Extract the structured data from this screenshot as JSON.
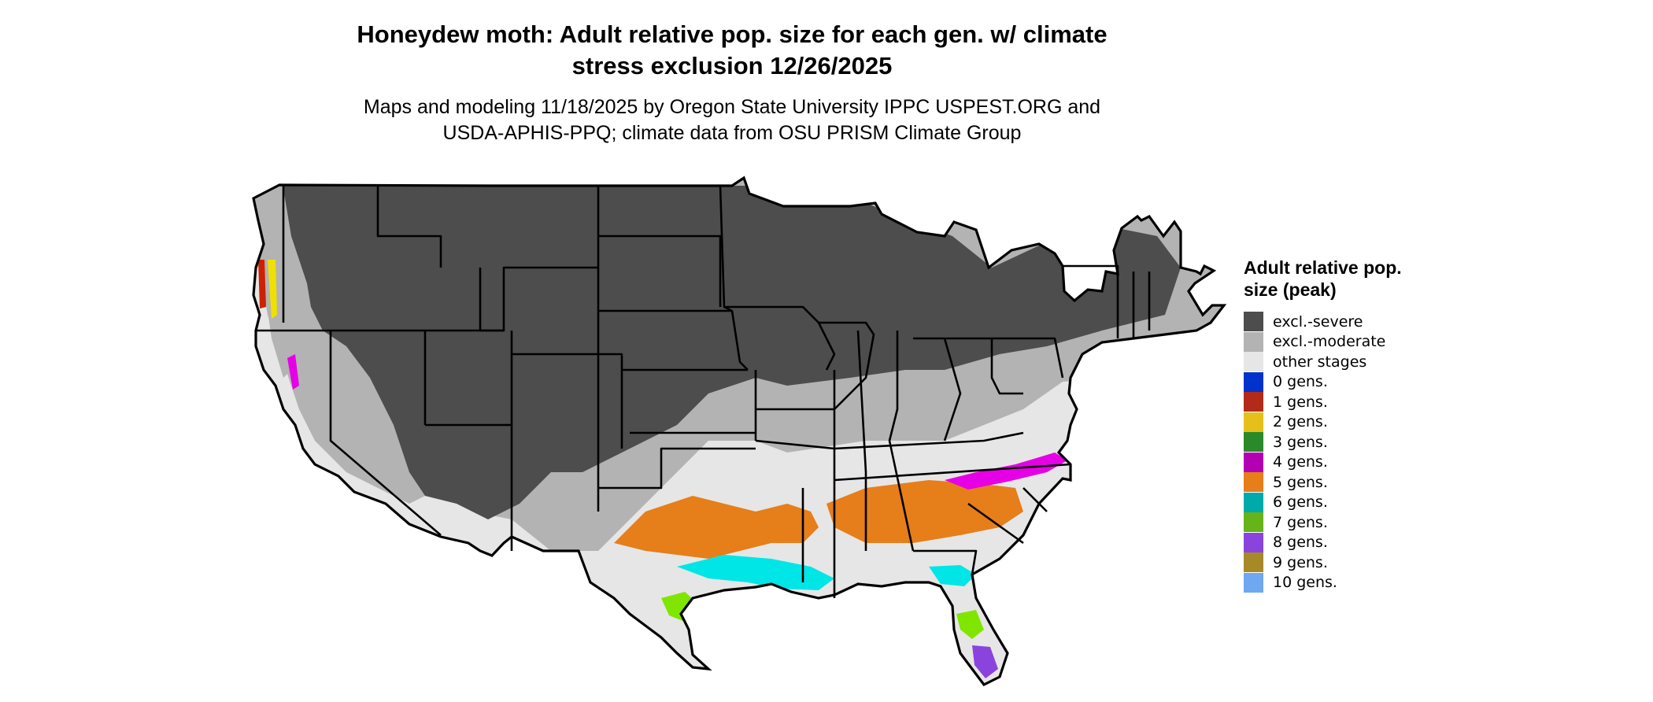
{
  "title_line1": "Honeydew moth: Adult relative pop. size for each gen. w/ climate",
  "title_line2": "stress exclusion 12/26/2025",
  "subtitle_line1": "Maps and modeling 11/18/2025 by Oregon State University IPPC USPEST.ORG and",
  "subtitle_line2": "USDA-APHIS-PPQ; climate data from OSU PRISM Climate Group",
  "legend": {
    "title": "Adult relative pop. size (peak)",
    "items": [
      {
        "label": "excl.-severe",
        "color": "#4d4d4d"
      },
      {
        "label": "excl.-moderate",
        "color": "#b3b3b3"
      },
      {
        "label": "other stages",
        "color": "#e6e6e6"
      },
      {
        "label": "0 gens.",
        "color": "#0033cc"
      },
      {
        "label": "1 gens.",
        "color": "#b22b1a"
      },
      {
        "label": "2 gens.",
        "color": "#e6c01a"
      },
      {
        "label": "3 gens.",
        "color": "#2a8a2a"
      },
      {
        "label": "4 gens.",
        "color": "#b300b3"
      },
      {
        "label": "5 gens.",
        "color": "#e67e1a"
      },
      {
        "label": "6 gens.",
        "color": "#00aaaa"
      },
      {
        "label": "7 gens.",
        "color": "#66b31a"
      },
      {
        "label": "8 gens.",
        "color": "#8a44dd"
      },
      {
        "label": "9 gens.",
        "color": "#a8892a"
      },
      {
        "label": "10 gens.",
        "color": "#6ea8f0"
      }
    ]
  },
  "map_colors": {
    "severe": "#4d4d4d",
    "moderate": "#b3b3b3",
    "other": "#e6e6e6",
    "gen4_magenta": "#e600e6",
    "gen5_orange": "#e67e1a",
    "gen6_cyan": "#00e6e6",
    "gen7_green": "#80e600",
    "gen8_purple": "#8a44dd",
    "gen2_yellow": "#f0e000",
    "gen1_red": "#cc2200",
    "gen3_green": "#2a8a2a"
  }
}
